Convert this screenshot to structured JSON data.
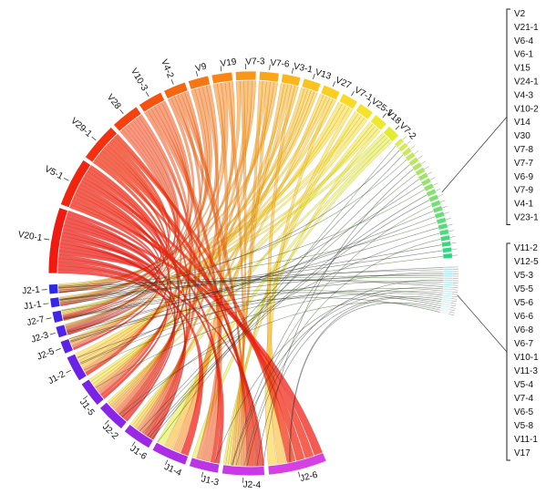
{
  "chart_data": {
    "type": "chord",
    "v_segments": [
      {
        "label": "V20-1",
        "color": "#f01a10"
      },
      {
        "label": "V5-1",
        "color": "#f3240f"
      },
      {
        "label": "V29-1",
        "color": "#f4300f"
      },
      {
        "label": "V28",
        "color": "#f5400f"
      },
      {
        "label": "V10-3",
        "color": "#f65210"
      },
      {
        "label": "V4-2",
        "color": "#f76511"
      },
      {
        "label": "V9",
        "color": "#f87612"
      },
      {
        "label": "V19",
        "color": "#f98614"
      },
      {
        "label": "V7-3",
        "color": "#fa9616"
      },
      {
        "label": "V7-6",
        "color": "#fba618"
      },
      {
        "label": "V3-1",
        "color": "#fcb51b"
      },
      {
        "label": "V13",
        "color": "#fcc21e"
      },
      {
        "label": "V27",
        "color": "#fcce22"
      },
      {
        "label": "V7-1",
        "color": "#fbda26"
      },
      {
        "label": "V25-1",
        "color": "#f6e22a"
      },
      {
        "label": "V18",
        "color": "#eee82e"
      },
      {
        "label": "V7-2",
        "color": "#e2ec33"
      }
    ],
    "j_segments": [
      {
        "label": "J2-1",
        "color": "#2a2ae6"
      },
      {
        "label": "J1-1",
        "color": "#3627e6"
      },
      {
        "label": "J2-7",
        "color": "#4325e6"
      },
      {
        "label": "J2-3",
        "color": "#5123e6"
      },
      {
        "label": "J2-5",
        "color": "#5e22e6"
      },
      {
        "label": "J1-2",
        "color": "#6b22e6"
      },
      {
        "label": "J1-5",
        "color": "#7a22e6"
      },
      {
        "label": "J2-2",
        "color": "#8a24e6"
      },
      {
        "label": "J1-6",
        "color": "#9b28e6"
      },
      {
        "label": "J1-4",
        "color": "#ab2ee6"
      },
      {
        "label": "J1-3",
        "color": "#bb34e6"
      },
      {
        "label": "J2-4",
        "color": "#c93ae6"
      },
      {
        "label": "J2-6",
        "color": "#d641e6"
      }
    ],
    "legend_group_1": [
      "V2",
      "V21-1",
      "V6-4",
      "V6-1",
      "V15",
      "V24-1",
      "V4-3",
      "V10-2",
      "V14",
      "V30",
      "V7-8",
      "V7-7",
      "V6-9",
      "V7-9",
      "V4-1",
      "V23-1"
    ],
    "legend_group_2": [
      "V11-2",
      "V12-5",
      "V5-3",
      "V5-5",
      "V5-6",
      "V6-6",
      "V6-8",
      "V6-7",
      "V10-1",
      "V11-3",
      "V5-4",
      "V7-4",
      "V6-5",
      "V5-8",
      "V11-1",
      "V17"
    ]
  }
}
